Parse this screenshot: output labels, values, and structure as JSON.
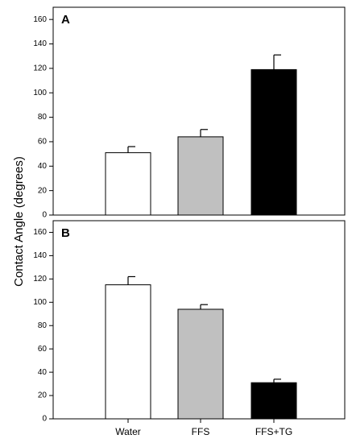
{
  "chart_data": [
    {
      "type": "bar",
      "panel_label": "A",
      "categories": [
        "Water",
        "FFS",
        "FFS+TG"
      ],
      "values": [
        51,
        64,
        119
      ],
      "errors": [
        5,
        6,
        12
      ],
      "bar_colors": [
        "#ffffff",
        "#c0c0c0",
        "#000000"
      ],
      "ylim": [
        0,
        170
      ],
      "yticks": [
        0,
        20,
        40,
        60,
        80,
        100,
        120,
        140,
        160
      ],
      "show_x_labels": false,
      "grid": false
    },
    {
      "type": "bar",
      "panel_label": "B",
      "categories": [
        "Water",
        "FFS",
        "FFS+TG"
      ],
      "values": [
        115,
        94,
        31
      ],
      "errors": [
        7,
        4,
        3
      ],
      "bar_colors": [
        "#ffffff",
        "#c0c0c0",
        "#000000"
      ],
      "ylim": [
        0,
        170
      ],
      "yticks": [
        0,
        20,
        40,
        60,
        80,
        100,
        120,
        140,
        160
      ],
      "show_x_labels": true,
      "grid": false
    }
  ],
  "ylabel": "Contact Angle (degrees)"
}
